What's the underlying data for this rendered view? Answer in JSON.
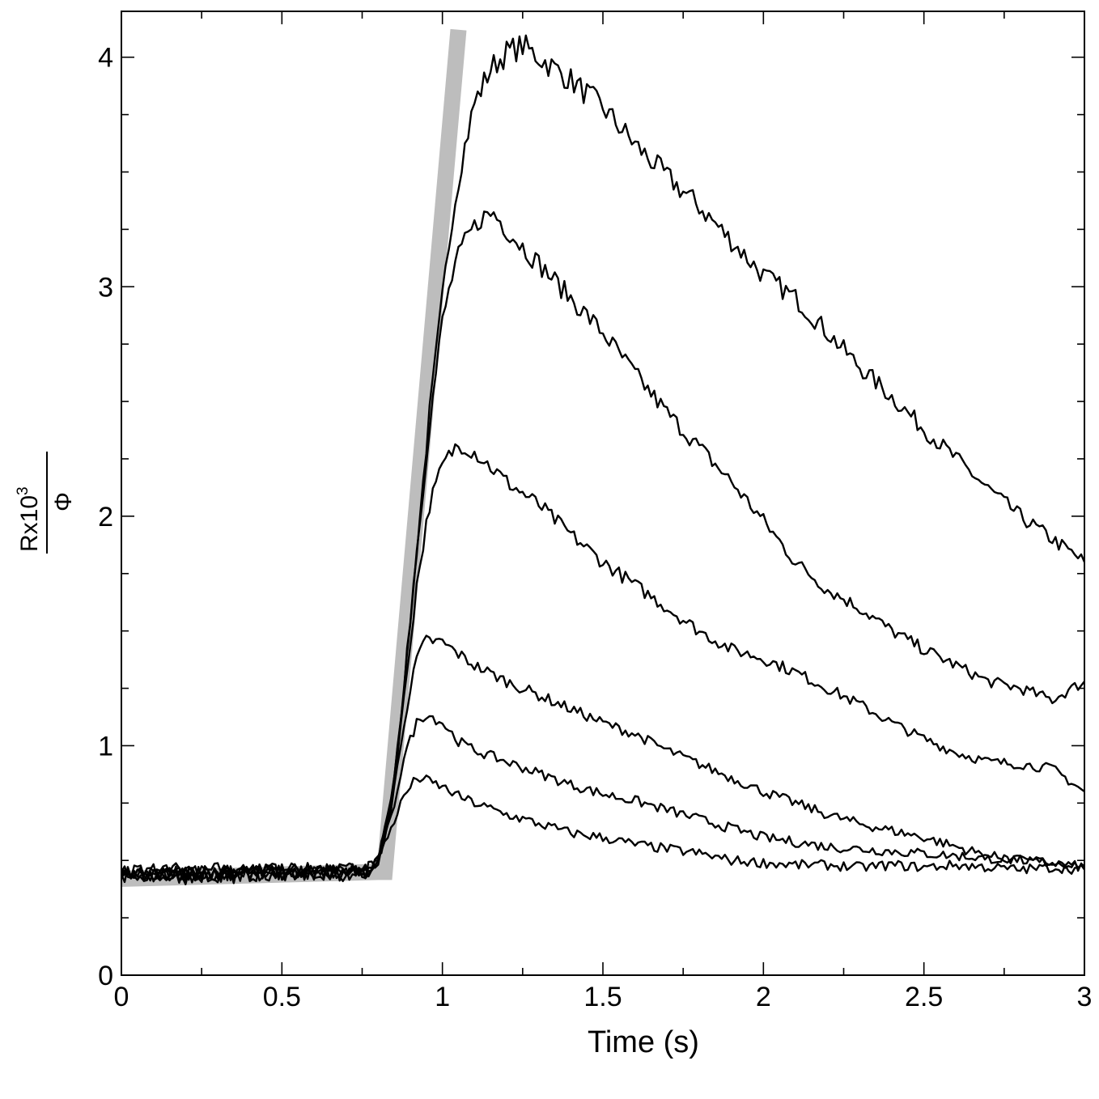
{
  "chart_data": {
    "type": "line",
    "title": "",
    "xlabel": "Time (s)",
    "ylabel": {
      "numerator_text": "Rx10",
      "numerator_superscript": "3",
      "denominator": "Φ"
    },
    "xlim": [
      0,
      3
    ],
    "ylim": [
      0,
      4.2
    ],
    "x_ticks": [
      0,
      0.5,
      1,
      1.5,
      2,
      2.5,
      3
    ],
    "x_tick_labels": [
      "0",
      "0.5",
      "1",
      "1.5",
      "2",
      "2.5",
      "3"
    ],
    "y_ticks": [
      0,
      1,
      2,
      3,
      4
    ],
    "y_tick_labels": [
      "0",
      "1",
      "2",
      "3",
      "4"
    ],
    "x_minor_step": 0.25,
    "y_minor_step": 0.25,
    "grid": false,
    "legend": "none",
    "colors": {
      "traces": "#000000",
      "fit": "#bdbdbd"
    },
    "fit_line": {
      "x": [
        0.0,
        0.8,
        0.82,
        1.05
      ],
      "y": [
        0.42,
        0.45,
        0.45,
        4.12
      ]
    },
    "series": [
      {
        "x": [
          0,
          0.1,
          0.2,
          0.3,
          0.4,
          0.5,
          0.6,
          0.7,
          0.76,
          0.8,
          0.84,
          0.88,
          0.92,
          0.96,
          1.0,
          1.03,
          1.06,
          1.1,
          1.15,
          1.2,
          1.25,
          1.3,
          1.4,
          1.5,
          1.6,
          1.7,
          1.8,
          1.9,
          2.0,
          2.1,
          2.2,
          2.3,
          2.4,
          2.5,
          2.6,
          2.7,
          2.8,
          2.9,
          3.0
        ],
        "y": [
          0.44,
          0.45,
          0.43,
          0.46,
          0.44,
          0.45,
          0.46,
          0.44,
          0.45,
          0.5,
          0.75,
          1.25,
          1.85,
          2.45,
          2.95,
          3.3,
          3.55,
          3.8,
          3.95,
          4.02,
          4.05,
          4.0,
          3.9,
          3.78,
          3.62,
          3.48,
          3.35,
          3.2,
          3.05,
          2.95,
          2.8,
          2.65,
          2.52,
          2.38,
          2.25,
          2.12,
          2.0,
          1.9,
          1.8
        ]
      },
      {
        "x": [
          0,
          0.1,
          0.2,
          0.3,
          0.4,
          0.5,
          0.6,
          0.7,
          0.76,
          0.8,
          0.84,
          0.88,
          0.92,
          0.96,
          1.0,
          1.04,
          1.08,
          1.12,
          1.16,
          1.2,
          1.3,
          1.4,
          1.5,
          1.6,
          1.7,
          1.8,
          1.9,
          2.0,
          2.1,
          2.2,
          2.3,
          2.4,
          2.5,
          2.6,
          2.7,
          2.8,
          2.9,
          3.0
        ],
        "y": [
          0.44,
          0.43,
          0.45,
          0.44,
          0.45,
          0.44,
          0.45,
          0.46,
          0.45,
          0.5,
          0.75,
          1.25,
          1.85,
          2.4,
          2.85,
          3.1,
          3.22,
          3.3,
          3.32,
          3.25,
          3.1,
          2.95,
          2.8,
          2.62,
          2.45,
          2.3,
          2.15,
          1.98,
          1.8,
          1.68,
          1.6,
          1.5,
          1.42,
          1.35,
          1.28,
          1.25,
          1.2,
          1.28
        ]
      },
      {
        "x": [
          0,
          0.1,
          0.2,
          0.3,
          0.4,
          0.5,
          0.6,
          0.7,
          0.76,
          0.8,
          0.84,
          0.88,
          0.92,
          0.96,
          1.0,
          1.04,
          1.06,
          1.1,
          1.2,
          1.3,
          1.4,
          1.5,
          1.6,
          1.7,
          1.8,
          1.9,
          2.0,
          2.1,
          2.2,
          2.3,
          2.4,
          2.5,
          2.6,
          2.7,
          2.8,
          2.9,
          3.0
        ],
        "y": [
          0.45,
          0.44,
          0.46,
          0.43,
          0.44,
          0.45,
          0.44,
          0.45,
          0.45,
          0.5,
          0.75,
          1.2,
          1.7,
          2.05,
          2.22,
          2.3,
          2.31,
          2.28,
          2.15,
          2.05,
          1.92,
          1.8,
          1.7,
          1.6,
          1.5,
          1.42,
          1.38,
          1.32,
          1.25,
          1.18,
          1.1,
          1.03,
          0.97,
          0.93,
          0.92,
          0.9,
          0.8
        ]
      },
      {
        "x": [
          0,
          0.1,
          0.2,
          0.3,
          0.4,
          0.5,
          0.6,
          0.7,
          0.76,
          0.8,
          0.84,
          0.88,
          0.92,
          0.95,
          1.0,
          1.05,
          1.1,
          1.2,
          1.3,
          1.4,
          1.5,
          1.6,
          1.7,
          1.8,
          1.9,
          2.0,
          2.1,
          2.2,
          2.3,
          2.4,
          2.5,
          2.6,
          2.7,
          2.8,
          2.9,
          3.0
        ],
        "y": [
          0.43,
          0.45,
          0.44,
          0.45,
          0.44,
          0.46,
          0.45,
          0.44,
          0.45,
          0.5,
          0.72,
          1.1,
          1.38,
          1.46,
          1.45,
          1.4,
          1.35,
          1.28,
          1.22,
          1.16,
          1.1,
          1.05,
          0.98,
          0.92,
          0.86,
          0.8,
          0.75,
          0.7,
          0.66,
          0.63,
          0.6,
          0.56,
          0.52,
          0.5,
          0.49,
          0.47
        ]
      },
      {
        "x": [
          0,
          0.1,
          0.2,
          0.3,
          0.4,
          0.5,
          0.6,
          0.7,
          0.76,
          0.8,
          0.84,
          0.88,
          0.92,
          0.95,
          1.0,
          1.05,
          1.1,
          1.2,
          1.3,
          1.4,
          1.5,
          1.6,
          1.7,
          1.8,
          1.9,
          2.0,
          2.1,
          2.2,
          2.3,
          2.4,
          2.5,
          2.6,
          2.7,
          2.8,
          2.9,
          3.0
        ],
        "y": [
          0.44,
          0.43,
          0.45,
          0.44,
          0.46,
          0.44,
          0.45,
          0.45,
          0.45,
          0.5,
          0.68,
          0.95,
          1.1,
          1.14,
          1.1,
          1.02,
          0.98,
          0.93,
          0.88,
          0.83,
          0.79,
          0.76,
          0.72,
          0.68,
          0.64,
          0.6,
          0.58,
          0.56,
          0.55,
          0.54,
          0.53,
          0.52,
          0.51,
          0.5,
          0.49,
          0.48
        ]
      },
      {
        "x": [
          0,
          0.1,
          0.2,
          0.3,
          0.4,
          0.5,
          0.6,
          0.7,
          0.76,
          0.8,
          0.84,
          0.88,
          0.92,
          0.95,
          1.0,
          1.05,
          1.1,
          1.2,
          1.3,
          1.4,
          1.5,
          1.6,
          1.7,
          1.8,
          1.9,
          2.0,
          2.1,
          2.2,
          2.3,
          2.4,
          2.5,
          2.6,
          2.7,
          2.8,
          2.9,
          3.0
        ],
        "y": [
          0.45,
          0.44,
          0.43,
          0.45,
          0.44,
          0.45,
          0.46,
          0.44,
          0.45,
          0.5,
          0.64,
          0.78,
          0.86,
          0.85,
          0.82,
          0.78,
          0.75,
          0.7,
          0.66,
          0.62,
          0.6,
          0.57,
          0.55,
          0.53,
          0.5,
          0.49,
          0.48,
          0.48,
          0.47,
          0.48,
          0.47,
          0.48,
          0.47,
          0.46,
          0.47,
          0.46
        ]
      }
    ]
  }
}
